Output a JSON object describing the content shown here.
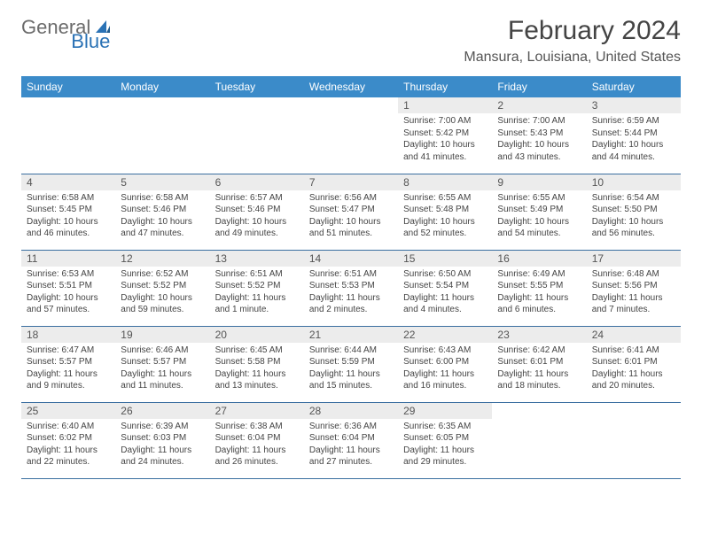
{
  "logo": {
    "text1": "General",
    "text2": "Blue"
  },
  "title": "February 2024",
  "location": "Mansura, Louisiana, United States",
  "colors": {
    "header_bg": "#3b8bc9",
    "header_text": "#ffffff",
    "daynum_bg": "#ececec",
    "row_border": "#3b6fa0",
    "logo_gray": "#6b6b6b",
    "logo_blue": "#2a72b5"
  },
  "day_headers": [
    "Sunday",
    "Monday",
    "Tuesday",
    "Wednesday",
    "Thursday",
    "Friday",
    "Saturday"
  ],
  "weeks": [
    [
      null,
      null,
      null,
      null,
      {
        "n": "1",
        "sr": "7:00 AM",
        "ss": "5:42 PM",
        "dl": "10 hours and 41 minutes."
      },
      {
        "n": "2",
        "sr": "7:00 AM",
        "ss": "5:43 PM",
        "dl": "10 hours and 43 minutes."
      },
      {
        "n": "3",
        "sr": "6:59 AM",
        "ss": "5:44 PM",
        "dl": "10 hours and 44 minutes."
      }
    ],
    [
      {
        "n": "4",
        "sr": "6:58 AM",
        "ss": "5:45 PM",
        "dl": "10 hours and 46 minutes."
      },
      {
        "n": "5",
        "sr": "6:58 AM",
        "ss": "5:46 PM",
        "dl": "10 hours and 47 minutes."
      },
      {
        "n": "6",
        "sr": "6:57 AM",
        "ss": "5:46 PM",
        "dl": "10 hours and 49 minutes."
      },
      {
        "n": "7",
        "sr": "6:56 AM",
        "ss": "5:47 PM",
        "dl": "10 hours and 51 minutes."
      },
      {
        "n": "8",
        "sr": "6:55 AM",
        "ss": "5:48 PM",
        "dl": "10 hours and 52 minutes."
      },
      {
        "n": "9",
        "sr": "6:55 AM",
        "ss": "5:49 PM",
        "dl": "10 hours and 54 minutes."
      },
      {
        "n": "10",
        "sr": "6:54 AM",
        "ss": "5:50 PM",
        "dl": "10 hours and 56 minutes."
      }
    ],
    [
      {
        "n": "11",
        "sr": "6:53 AM",
        "ss": "5:51 PM",
        "dl": "10 hours and 57 minutes."
      },
      {
        "n": "12",
        "sr": "6:52 AM",
        "ss": "5:52 PM",
        "dl": "10 hours and 59 minutes."
      },
      {
        "n": "13",
        "sr": "6:51 AM",
        "ss": "5:52 PM",
        "dl": "11 hours and 1 minute."
      },
      {
        "n": "14",
        "sr": "6:51 AM",
        "ss": "5:53 PM",
        "dl": "11 hours and 2 minutes."
      },
      {
        "n": "15",
        "sr": "6:50 AM",
        "ss": "5:54 PM",
        "dl": "11 hours and 4 minutes."
      },
      {
        "n": "16",
        "sr": "6:49 AM",
        "ss": "5:55 PM",
        "dl": "11 hours and 6 minutes."
      },
      {
        "n": "17",
        "sr": "6:48 AM",
        "ss": "5:56 PM",
        "dl": "11 hours and 7 minutes."
      }
    ],
    [
      {
        "n": "18",
        "sr": "6:47 AM",
        "ss": "5:57 PM",
        "dl": "11 hours and 9 minutes."
      },
      {
        "n": "19",
        "sr": "6:46 AM",
        "ss": "5:57 PM",
        "dl": "11 hours and 11 minutes."
      },
      {
        "n": "20",
        "sr": "6:45 AM",
        "ss": "5:58 PM",
        "dl": "11 hours and 13 minutes."
      },
      {
        "n": "21",
        "sr": "6:44 AM",
        "ss": "5:59 PM",
        "dl": "11 hours and 15 minutes."
      },
      {
        "n": "22",
        "sr": "6:43 AM",
        "ss": "6:00 PM",
        "dl": "11 hours and 16 minutes."
      },
      {
        "n": "23",
        "sr": "6:42 AM",
        "ss": "6:01 PM",
        "dl": "11 hours and 18 minutes."
      },
      {
        "n": "24",
        "sr": "6:41 AM",
        "ss": "6:01 PM",
        "dl": "11 hours and 20 minutes."
      }
    ],
    [
      {
        "n": "25",
        "sr": "6:40 AM",
        "ss": "6:02 PM",
        "dl": "11 hours and 22 minutes."
      },
      {
        "n": "26",
        "sr": "6:39 AM",
        "ss": "6:03 PM",
        "dl": "11 hours and 24 minutes."
      },
      {
        "n": "27",
        "sr": "6:38 AM",
        "ss": "6:04 PM",
        "dl": "11 hours and 26 minutes."
      },
      {
        "n": "28",
        "sr": "6:36 AM",
        "ss": "6:04 PM",
        "dl": "11 hours and 27 minutes."
      },
      {
        "n": "29",
        "sr": "6:35 AM",
        "ss": "6:05 PM",
        "dl": "11 hours and 29 minutes."
      },
      null,
      null
    ]
  ],
  "labels": {
    "sunrise": "Sunrise:",
    "sunset": "Sunset:",
    "daylight": "Daylight:"
  }
}
